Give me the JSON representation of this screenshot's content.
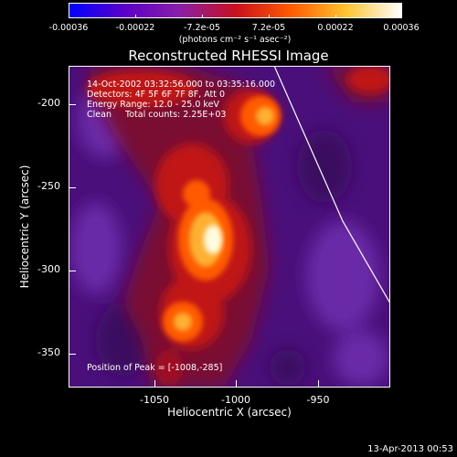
{
  "colorbar": {
    "ticks": [
      "-0.00036",
      "-0.00022",
      "-7.2e-05",
      "7.2e-05",
      "0.00022",
      "0.00036"
    ],
    "units": "(photons cm⁻² s⁻¹ asec⁻²)",
    "colors": [
      "#0000ff",
      "#5b00c8",
      "#8a1fa8",
      "#c8101e",
      "#ff5a00",
      "#ffc430",
      "#ffffff"
    ]
  },
  "title": "Reconstructed RHESSI Image",
  "annotations": {
    "line1": "14-Oct-2002 03:32:56.000 to 03:35:16.000",
    "line2": "Detectors: 4F 5F 6F 7F 8F, Att 0",
    "line3": "Energy Range: 12.0 - 25.0 keV",
    "line4": "Clean     Total counts: 2.25E+03",
    "peak": "Position of Peak = [-1008,-285]"
  },
  "axes": {
    "ylabel": "Heliocentric Y (arcsec)",
    "xlabel": "Heliocentric X (arcsec)",
    "yticks": [
      "-200",
      "-250",
      "-300",
      "-350"
    ],
    "xticks": [
      "-1050",
      "-1000",
      "-950"
    ]
  },
  "footer": {
    "timestamp": "13-Apr-2013 00:53"
  }
}
